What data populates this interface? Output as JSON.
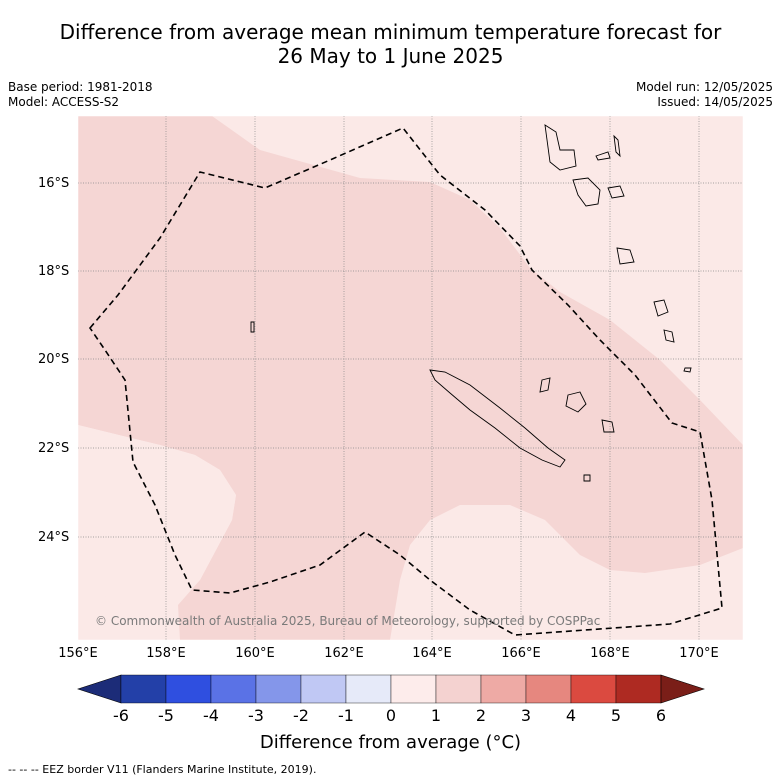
{
  "title_line1": "Difference from average mean minimum temperature forecast for",
  "title_line2": "26 May to 1 June 2025",
  "base_period": "Base period: 1981-2018",
  "model": "Model: ACCESS-S2",
  "model_run": "Model run: 12/05/2025",
  "issued": "Issued: 14/05/2025",
  "copyright": "© Commonwealth of Australia 2025, Bureau of Meteorology, supported by COSPPac",
  "lat_labels": [
    "16°S",
    "18°S",
    "20°S",
    "22°S",
    "24°S"
  ],
  "lon_labels": [
    "156°E",
    "158°E",
    "160°E",
    "162°E",
    "164°E",
    "166°E",
    "168°E",
    "170°E"
  ],
  "colorbar": {
    "ticks": [
      "-6",
      "-5",
      "-4",
      "-3",
      "-2",
      "-1",
      "0",
      "1",
      "2",
      "3",
      "4",
      "5",
      "6"
    ],
    "colors": [
      "#2340a8",
      "#2f4fe0",
      "#5a72e6",
      "#8496ea",
      "#c0c8f4",
      "#e6eaf9",
      "#fdeceb",
      "#f4d2d0",
      "#eeaaa5",
      "#e6877f",
      "#db4a40",
      "#ae2a22"
    ],
    "under_color": "#1c2c78",
    "over_color": "#7a1e18",
    "title": "Difference from average (°C)"
  },
  "map_colors": {
    "zero_to_one": "#fbe9e7",
    "one_to_two": "#f5d6d4"
  },
  "legend_note": "-- -- -- EEZ border V11 (Flanders Marine Institute, 2019)."
}
